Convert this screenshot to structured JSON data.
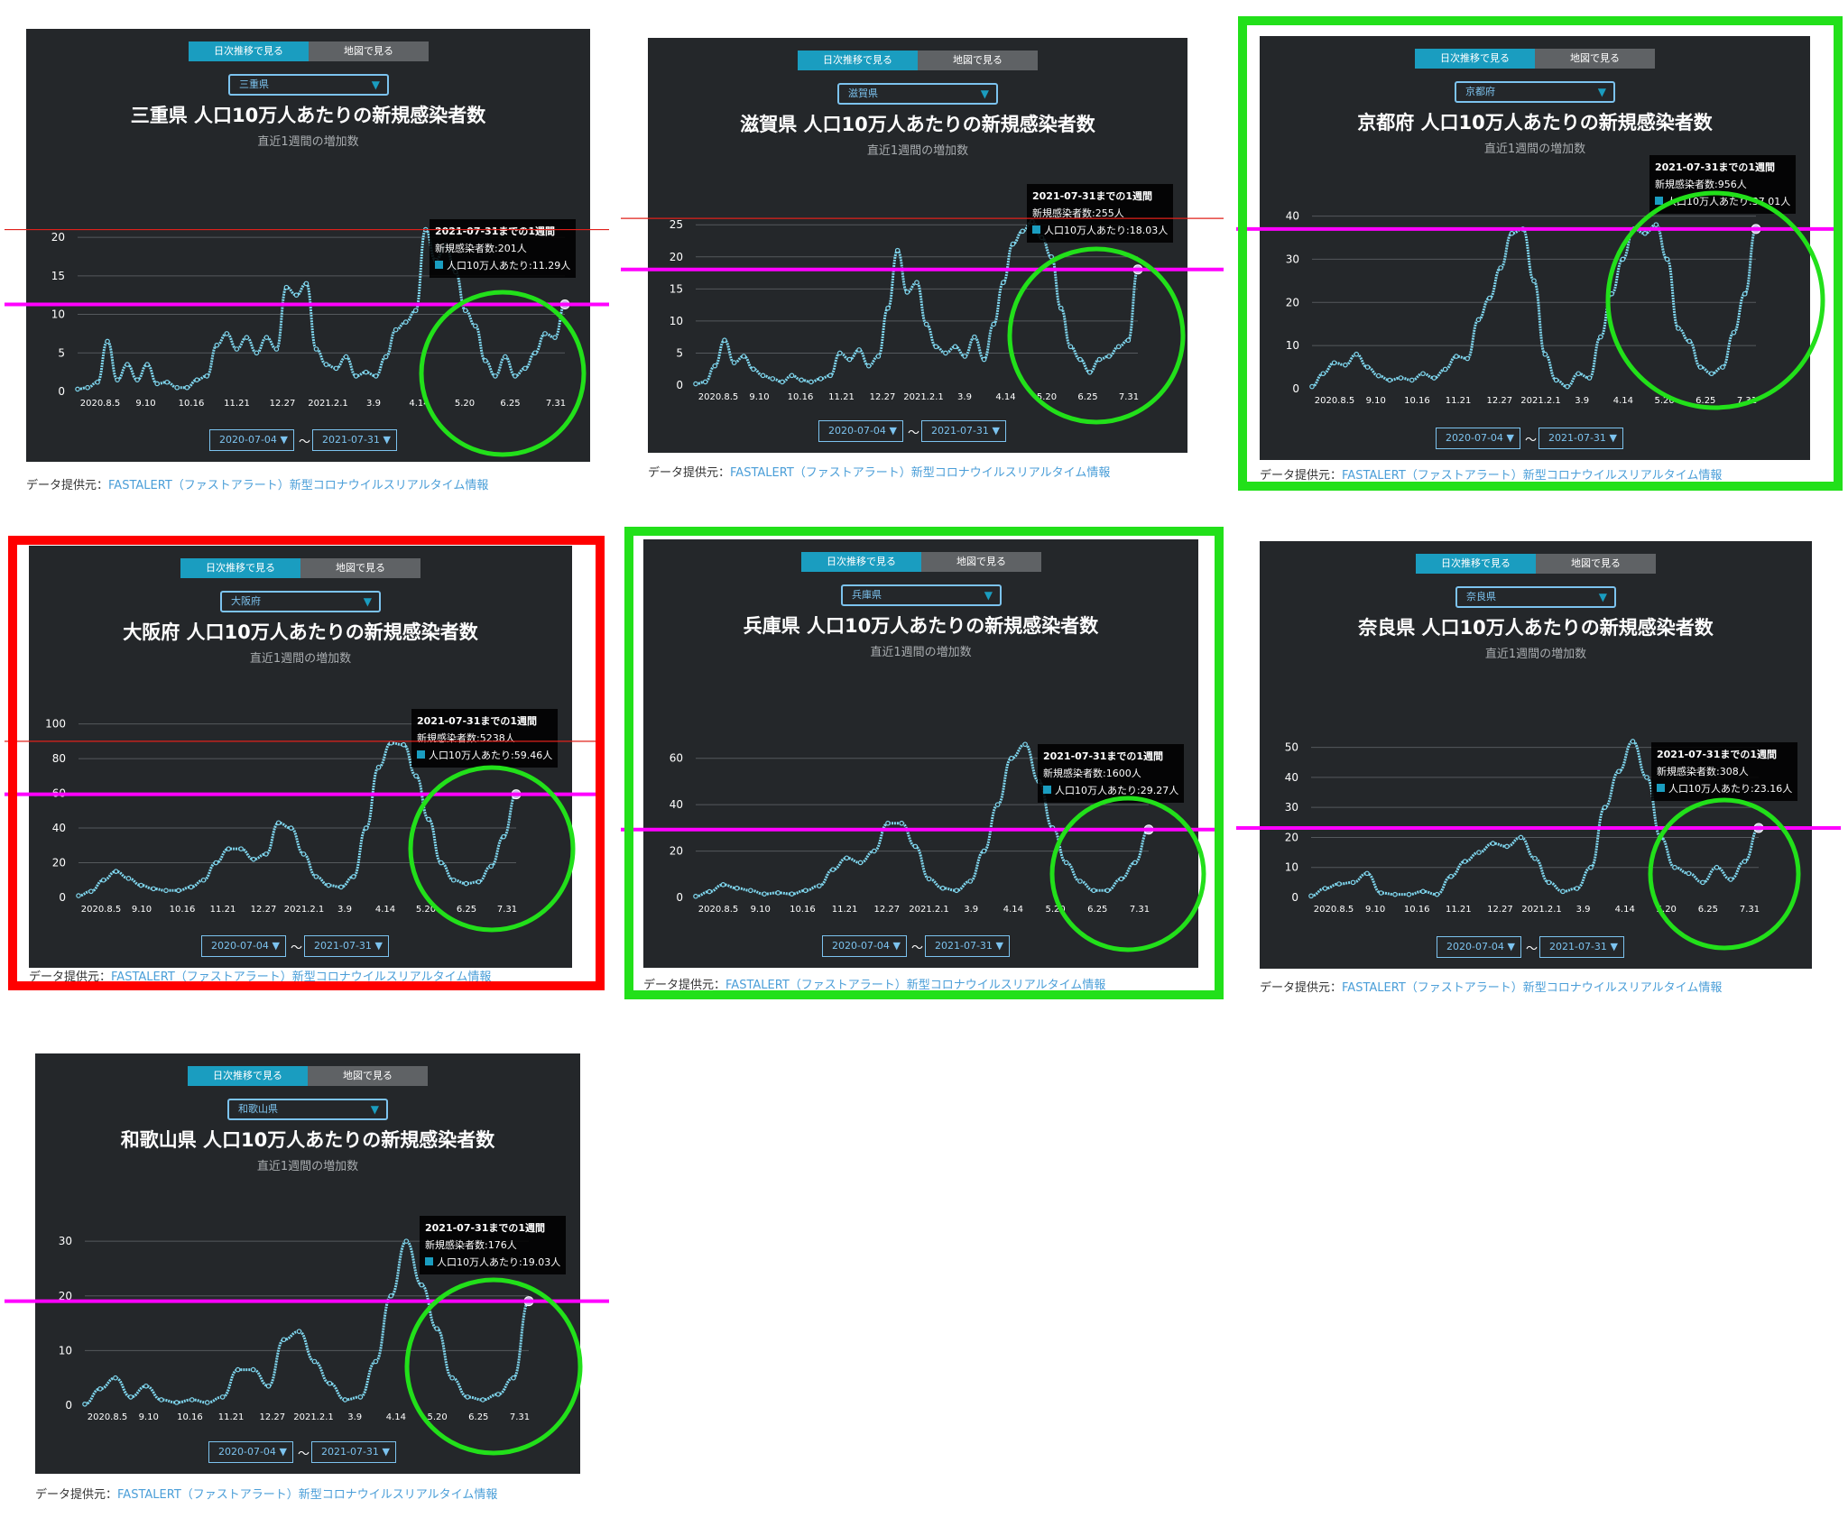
{
  "common": {
    "tab_daily": "日次推移で見る",
    "tab_map": "地図で見る",
    "subtitle": "直近1週間の増加数",
    "date_from": "2020-07-04",
    "date_to": "2021-07-31",
    "tilde": "〜",
    "source_label": "データ提供元：",
    "source_link": "FASTALERT（ファストアラート）新型コロナウイルスリアルタイム情報",
    "x_ticks": [
      "2020.8.5",
      "9.10",
      "10.16",
      "11.21",
      "12.27",
      "2021.2.1",
      "3.9",
      "4.14",
      "5.20",
      "6.25",
      "7.31"
    ],
    "colors": {
      "line": "#7fd6ee",
      "reference": "#ff00ff",
      "peak_line": "#e0201a",
      "circle": "#22e01a",
      "green_frame": "#22e01a",
      "red_frame": "#ff0000",
      "card_bg": "#24272a"
    }
  },
  "chart_data": [
    {
      "type": "line",
      "prefecture": "三重県",
      "title": "三重県 人口10万人あたりの新規感染者数",
      "ylim": [
        0,
        22
      ],
      "yticks": [
        0,
        5,
        10,
        15,
        20
      ],
      "tooltip": {
        "line1": "2021-07-31までの1週間",
        "line2": "新規感染者数:201人",
        "line3": "人口10万人あたり:11.29人"
      },
      "end_value": 11.29,
      "reference_line": 11.29,
      "peak_line": 21,
      "frame": "none",
      "series": [
        0.3,
        0.5,
        1.2,
        6.5,
        1.5,
        3.5,
        1.5,
        3.5,
        1.0,
        1.2,
        0.5,
        0.5,
        1.5,
        2.0,
        6.0,
        7.5,
        5.5,
        7.0,
        5.0,
        7.0,
        5.5,
        13.5,
        12.5,
        14.0,
        5.5,
        3.5,
        3.0,
        4.5,
        2.0,
        2.5,
        2.0,
        4.5,
        8.0,
        9.0,
        10.5,
        21.0,
        17.0,
        19.0,
        15.5,
        10.5,
        8.5,
        4.0,
        2.0,
        4.5,
        2.0,
        3.0,
        5.0,
        7.5,
        7.0,
        11.29
      ]
    },
    {
      "type": "line",
      "prefecture": "滋賀県",
      "title": "滋賀県 人口10万人あたりの新規感染者数",
      "ylim": [
        0,
        27
      ],
      "yticks": [
        0,
        5,
        10,
        15,
        20,
        25
      ],
      "tooltip": {
        "line1": "2021-07-31までの1週間",
        "line2": "新規感染者数:255人",
        "line3": "人口10万人あたり:18.03人"
      },
      "end_value": 18.03,
      "reference_line": 18.03,
      "peak_line": 26,
      "frame": "none",
      "series": [
        0.2,
        0.5,
        3.0,
        7.0,
        3.5,
        4.5,
        2.5,
        1.5,
        1.0,
        0.5,
        1.5,
        0.8,
        0.5,
        1.0,
        1.5,
        5.0,
        4.0,
        5.5,
        3.0,
        4.5,
        12.0,
        21.0,
        14.5,
        16.0,
        9.5,
        6.0,
        5.0,
        6.0,
        4.5,
        7.5,
        4.0,
        9.5,
        16.0,
        22.0,
        24.0,
        25.5,
        23.0,
        20.0,
        12.0,
        6.0,
        4.0,
        2.0,
        4.0,
        4.5,
        6.0,
        7.0,
        18.03
      ]
    },
    {
      "type": "line",
      "prefecture": "京都府",
      "title": "京都府 人口10万人あたりの新規感染者数",
      "ylim": [
        0,
        42
      ],
      "yticks": [
        0,
        10,
        20,
        30,
        40
      ],
      "tooltip": {
        "line1": "2021-07-31までの1週間",
        "line2": "新規感染者数:956人",
        "line3": "人口10万人あたり:37.01人"
      },
      "end_value": 37.01,
      "reference_line": 37.01,
      "peak_line": null,
      "frame": "green",
      "series": [
        0.5,
        3.5,
        6.0,
        5.5,
        8.0,
        5.0,
        3.0,
        2.0,
        2.5,
        2.0,
        3.5,
        2.5,
        4.5,
        7.5,
        7.0,
        16.0,
        21.0,
        28.0,
        36.0,
        37.0,
        25.0,
        8.0,
        2.0,
        0.5,
        3.5,
        2.5,
        12.0,
        22.0,
        30.0,
        37.0,
        36.0,
        38.0,
        30.0,
        14.0,
        11.0,
        5.0,
        3.5,
        5.0,
        13.0,
        22.0,
        37.01
      ]
    },
    {
      "type": "line",
      "prefecture": "大阪府",
      "title": "大阪府 人口10万人あたりの新規感染者数",
      "ylim": [
        0,
        105
      ],
      "yticks": [
        0,
        20,
        40,
        60,
        80,
        100
      ],
      "tooltip": {
        "line1": "2021-07-31までの1週間",
        "line2": "新規感染者数:5238人",
        "line3": "人口10万人あたり:59.46人"
      },
      "end_value": 59.46,
      "reference_line": 59.46,
      "peak_line": 90,
      "frame": "red",
      "series": [
        1.0,
        3.5,
        10.0,
        15.0,
        11.0,
        7.0,
        5.0,
        4.0,
        4.0,
        6.0,
        10.0,
        20.0,
        28.0,
        28.0,
        22.0,
        25.0,
        43.0,
        40.0,
        25.0,
        12.0,
        7.0,
        6.0,
        12.0,
        40.0,
        75.0,
        89.0,
        88.0,
        70.0,
        45.0,
        20.0,
        10.0,
        8.0,
        9.0,
        18.0,
        35.0,
        59.46
      ]
    },
    {
      "type": "line",
      "prefecture": "兵庫県",
      "title": "兵庫県 人口10万人あたりの新規感染者数",
      "ylim": [
        0,
        70
      ],
      "yticks": [
        0,
        20,
        40,
        60
      ],
      "tooltip": {
        "line1": "2021-07-31までの1週間",
        "line2": "新規感染者数:1600人",
        "line3": "人口10万人あたり:29.27人"
      },
      "end_value": 29.27,
      "reference_line": 29.27,
      "peak_line": null,
      "frame": "green",
      "series": [
        0.5,
        2.5,
        5.5,
        4.0,
        3.0,
        1.5,
        2.0,
        1.5,
        3.0,
        5.0,
        12.0,
        17.0,
        15.0,
        20.0,
        32.0,
        32.0,
        22.0,
        8.0,
        4.0,
        3.0,
        7.0,
        20.0,
        40.0,
        60.0,
        66.0,
        50.0,
        30.0,
        15.0,
        7.0,
        3.0,
        3.0,
        8.0,
        15.0,
        29.27
      ]
    },
    {
      "type": "line",
      "prefecture": "奈良県",
      "title": "奈良県 人口10万人あたりの新規感染者数",
      "ylim": [
        0,
        55
      ],
      "yticks": [
        0,
        10,
        20,
        30,
        40,
        50
      ],
      "tooltip": {
        "line1": "2021-07-31までの1週間",
        "line2": "新規感染者数:308人",
        "line3": "人口10万人あたり:23.16人"
      },
      "end_value": 23.16,
      "reference_line": 23.16,
      "peak_line": null,
      "frame": "none",
      "series": [
        0.5,
        3.0,
        4.5,
        5.0,
        8.0,
        1.5,
        1.0,
        1.0,
        2.0,
        1.0,
        7.0,
        12.0,
        15.0,
        18.0,
        17.0,
        20.0,
        13.0,
        5.0,
        2.0,
        3.0,
        10.0,
        30.0,
        42.0,
        52.0,
        40.0,
        20.0,
        10.0,
        8.0,
        5.0,
        10.0,
        6.0,
        12.0,
        23.16
      ]
    },
    {
      "type": "line",
      "prefecture": "和歌山県",
      "title": "和歌山県 人口10万人あたりの新規感染者数",
      "ylim": [
        0,
        32
      ],
      "yticks": [
        0,
        10,
        20,
        30
      ],
      "tooltip": {
        "line1": "2021-07-31までの1週間",
        "line2": "新規感染者数:176人",
        "line3": "人口10万人あたり:19.03人"
      },
      "end_value": 19.03,
      "reference_line": 19.03,
      "peak_line": null,
      "frame": "none",
      "series": [
        0.2,
        3.0,
        5.0,
        1.5,
        3.5,
        1.0,
        0.5,
        1.0,
        0.5,
        1.5,
        6.5,
        6.5,
        3.5,
        12.0,
        13.5,
        8.0,
        4.0,
        1.0,
        1.5,
        8.0,
        20.0,
        30.0,
        22.0,
        14.0,
        5.0,
        1.5,
        1.0,
        2.0,
        5.0,
        19.03
      ]
    }
  ]
}
